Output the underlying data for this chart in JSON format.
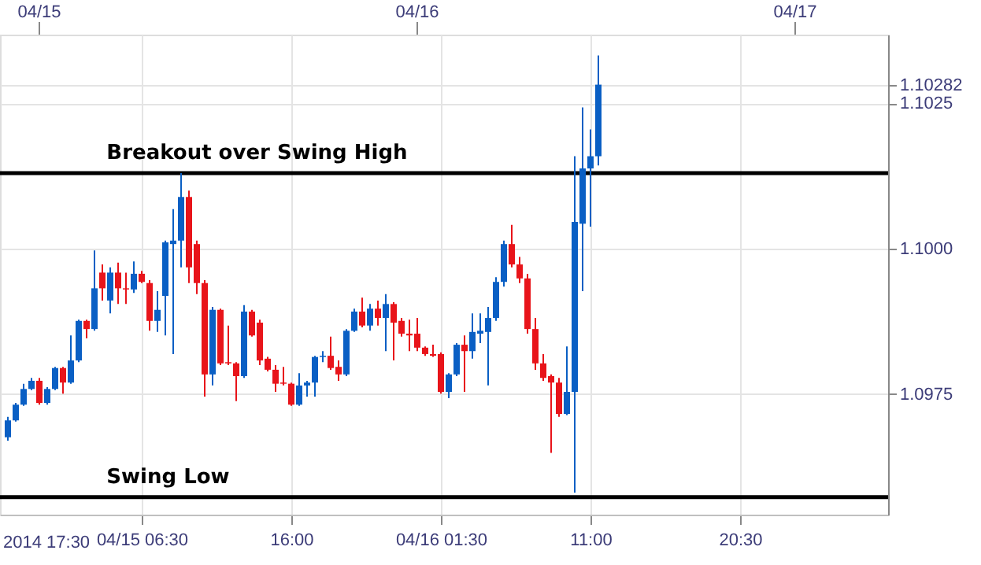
{
  "chart_data": {
    "type": "candlestick",
    "x": [
      "2014-04-14T22:00",
      "2014-04-14T22:30",
      "2014-04-14T23:00",
      "2014-04-14T23:30",
      "2014-04-15T00:00",
      "2014-04-15T00:30",
      "2014-04-15T01:00",
      "2014-04-15T01:30",
      "2014-04-15T02:00",
      "2014-04-15T02:30",
      "2014-04-15T03:00",
      "2014-04-15T03:30",
      "2014-04-15T04:00",
      "2014-04-15T04:30",
      "2014-04-15T05:00",
      "2014-04-15T05:30",
      "2014-04-15T06:00",
      "2014-04-15T06:30",
      "2014-04-15T07:00",
      "2014-04-15T07:30",
      "2014-04-15T08:00",
      "2014-04-15T08:30",
      "2014-04-15T09:00",
      "2014-04-15T09:30",
      "2014-04-15T10:00",
      "2014-04-15T10:30",
      "2014-04-15T11:00",
      "2014-04-15T11:30",
      "2014-04-15T12:00",
      "2014-04-15T12:30",
      "2014-04-15T13:00",
      "2014-04-15T13:30",
      "2014-04-15T14:00",
      "2014-04-15T14:30",
      "2014-04-15T15:00",
      "2014-04-15T15:30",
      "2014-04-15T16:00",
      "2014-04-15T16:30",
      "2014-04-15T17:00",
      "2014-04-15T17:30",
      "2014-04-15T18:00",
      "2014-04-15T18:30",
      "2014-04-15T19:00",
      "2014-04-15T19:30",
      "2014-04-15T20:00",
      "2014-04-15T20:30",
      "2014-04-15T21:00",
      "2014-04-15T21:30",
      "2014-04-15T22:00",
      "2014-04-15T22:30",
      "2014-04-15T23:00",
      "2014-04-15T23:30",
      "2014-04-16T00:00",
      "2014-04-16T00:30",
      "2014-04-16T01:00",
      "2014-04-16T01:30",
      "2014-04-16T02:00",
      "2014-04-16T02:30",
      "2014-04-16T03:00",
      "2014-04-16T03:30",
      "2014-04-16T04:00",
      "2014-04-16T04:30",
      "2014-04-16T05:00",
      "2014-04-16T05:30",
      "2014-04-16T06:00",
      "2014-04-16T06:30",
      "2014-04-16T07:00",
      "2014-04-16T07:30",
      "2014-04-16T08:00",
      "2014-04-16T08:30",
      "2014-04-16T09:00",
      "2014-04-16T09:30",
      "2014-04-16T10:00",
      "2014-04-16T10:30",
      "2014-04-16T11:00",
      "2014-04-16T11:30"
    ],
    "ohlc": [
      [
        1.09676,
        1.09711,
        1.0967,
        1.09705
      ],
      [
        1.09705,
        1.09735,
        1.09703,
        1.09732
      ],
      [
        1.09732,
        1.09768,
        1.0973,
        1.09759
      ],
      [
        1.09759,
        1.09778,
        1.09757,
        1.09773
      ],
      [
        1.09773,
        1.09778,
        1.09732,
        1.09735
      ],
      [
        1.09735,
        1.09762,
        1.09732,
        1.09759
      ],
      [
        1.09759,
        1.09797,
        1.09757,
        1.09795
      ],
      [
        1.09795,
        1.09797,
        1.09751,
        1.0977
      ],
      [
        1.0977,
        1.09851,
        1.09768,
        1.09808
      ],
      [
        1.09808,
        1.09878,
        1.09805,
        1.09876
      ],
      [
        1.09876,
        1.09878,
        1.09846,
        1.09862
      ],
      [
        1.09862,
        1.09997,
        1.09859,
        1.09932
      ],
      [
        1.09959,
        1.09973,
        1.09911,
        1.09932
      ],
      [
        1.09911,
        1.09968,
        1.09889,
        1.09959
      ],
      [
        1.09959,
        1.09976,
        1.09905,
        1.09932
      ],
      [
        1.09932,
        1.09959,
        1.09905,
        1.0993
      ],
      [
        1.0993,
        1.09978,
        1.09924,
        1.09957
      ],
      [
        1.09957,
        1.09962,
        1.09941,
        1.09943
      ],
      [
        1.09941,
        1.09946,
        1.09859,
        1.09876
      ],
      [
        1.09876,
        1.09927,
        1.09857,
        1.09895
      ],
      [
        1.09919,
        1.10014,
        1.09851,
        1.10011
      ],
      [
        1.10008,
        1.10068,
        1.09819,
        1.10014
      ],
      [
        1.10014,
        1.1013,
        1.09968,
        1.10089
      ],
      [
        1.10089,
        1.101,
        1.09941,
        1.09968
      ],
      [
        1.10008,
        1.10014,
        1.09922,
        1.09941
      ],
      [
        1.09941,
        1.09946,
        1.09746,
        1.09784
      ],
      [
        1.09784,
        1.099,
        1.09765,
        1.09895
      ],
      [
        1.09895,
        1.09897,
        1.098,
        1.09803
      ],
      [
        1.09805,
        1.09868,
        1.098,
        1.09803
      ],
      [
        1.09803,
        1.09805,
        1.09738,
        1.09781
      ],
      [
        1.09781,
        1.09903,
        1.09778,
        1.09892
      ],
      [
        1.09892,
        1.09895,
        1.09849,
        1.09851
      ],
      [
        1.09873,
        1.09878,
        1.098,
        1.09808
      ],
      [
        1.09811,
        1.09814,
        1.09789,
        1.09792
      ],
      [
        1.09792,
        1.098,
        1.09754,
        1.09768
      ],
      [
        1.0977,
        1.09797,
        1.09765,
        1.09768
      ],
      [
        1.09768,
        1.0977,
        1.0973,
        1.09732
      ],
      [
        1.09732,
        1.09786,
        1.0973,
        1.09765
      ],
      [
        1.09765,
        1.09773,
        1.09746,
        1.0977
      ],
      [
        1.0977,
        1.09816,
        1.09746,
        1.09814
      ],
      [
        1.09814,
        1.09824,
        1.09805,
        1.09816
      ],
      [
        1.09816,
        1.09849,
        1.09792,
        1.09795
      ],
      [
        1.09797,
        1.09808,
        1.09773,
        1.09784
      ],
      [
        1.09784,
        1.09862,
        1.09781,
        1.09859
      ],
      [
        1.09859,
        1.09897,
        1.09857,
        1.09892
      ],
      [
        1.09892,
        1.09916,
        1.09865,
        1.09868
      ],
      [
        1.09868,
        1.09905,
        1.09859,
        1.09897
      ],
      [
        1.09897,
        1.09911,
        1.09868,
        1.09881
      ],
      [
        1.09881,
        1.09922,
        1.09824,
        1.09905
      ],
      [
        1.09905,
        1.09908,
        1.09808,
        1.09873
      ],
      [
        1.09876,
        1.09881,
        1.09849,
        1.09854
      ],
      [
        1.09854,
        1.09878,
        1.09824,
        1.09851
      ],
      [
        1.09854,
        1.09881,
        1.09824,
        1.0983
      ],
      [
        1.0983,
        1.09832,
        1.09816,
        1.09819
      ],
      [
        1.09819,
        1.09835,
        1.09814,
        1.09816
      ],
      [
        1.09819,
        1.09822,
        1.09751,
        1.09754
      ],
      [
        1.09754,
        1.09786,
        1.09743,
        1.09784
      ],
      [
        1.09784,
        1.09838,
        1.09781,
        1.09835
      ],
      [
        1.09835,
        1.09851,
        1.09754,
        1.09824
      ],
      [
        1.09824,
        1.09889,
        1.09811,
        1.09857
      ],
      [
        1.09854,
        1.09889,
        1.09838,
        1.09859
      ],
      [
        1.09857,
        1.099,
        1.09765,
        1.09881
      ],
      [
        1.09881,
        1.09951,
        1.09876,
        1.09943
      ],
      [
        1.09943,
        1.10014,
        1.09935,
        1.10008
      ],
      [
        1.10008,
        1.10041,
        1.09968,
        1.09973
      ],
      [
        1.09973,
        1.09986,
        1.09941,
        1.09949
      ],
      [
        1.09949,
        1.09957,
        1.09854,
        1.09862
      ],
      [
        1.09862,
        1.09881,
        1.09792,
        1.09803
      ],
      [
        1.09803,
        1.09819,
        1.09773,
        1.09778
      ],
      [
        1.09781,
        1.09784,
        1.09649,
        1.0977
      ],
      [
        1.0977,
        1.09778,
        1.09711,
        1.09716
      ],
      [
        1.09716,
        1.09832,
        1.09714,
        1.09754
      ],
      [
        1.09754,
        1.10159,
        1.09581,
        1.10046
      ],
      [
        1.10043,
        1.10243,
        1.09927,
        1.10138
      ],
      [
        1.10138,
        1.10205,
        1.10038,
        1.10159
      ],
      [
        1.10159,
        1.10332,
        1.10143,
        1.10282
      ]
    ],
    "colors": [
      "#0a5fc4",
      "#0a5fc4",
      "#0a5fc4",
      "#0a5fc4",
      "#e8141a",
      "#0a5fc4",
      "#0a5fc4",
      "#e8141a",
      "#0a5fc4",
      "#0a5fc4",
      "#e8141a",
      "#0a5fc4",
      "#e8141a",
      "#0a5fc4",
      "#e8141a",
      "#e8141a",
      "#0a5fc4",
      "#e8141a",
      "#e8141a",
      "#0a5fc4",
      "#0a5fc4",
      "#0a5fc4",
      "#0a5fc4",
      "#e8141a",
      "#e8141a",
      "#e8141a",
      "#0a5fc4",
      "#e8141a",
      "#e8141a",
      "#e8141a",
      "#0a5fc4",
      "#e8141a",
      "#e8141a",
      "#e8141a",
      "#e8141a",
      "#e8141a",
      "#e8141a",
      "#0a5fc4",
      "#0a5fc4",
      "#0a5fc4",
      "#0a5fc4",
      "#e8141a",
      "#e8141a",
      "#0a5fc4",
      "#0a5fc4",
      "#e8141a",
      "#0a5fc4",
      "#e8141a",
      "#0a5fc4",
      "#e8141a",
      "#e8141a",
      "#e8141a",
      "#e8141a",
      "#e8141a",
      "#e8141a",
      "#e8141a",
      "#0a5fc4",
      "#0a5fc4",
      "#e8141a",
      "#0a5fc4",
      "#0a5fc4",
      "#0a5fc4",
      "#0a5fc4",
      "#0a5fc4",
      "#e8141a",
      "#e8141a",
      "#e8141a",
      "#e8141a",
      "#e8141a",
      "#e8141a",
      "#e8141a",
      "#0a5fc4",
      "#0a5fc4",
      "#0a5fc4",
      "#0a5fc4",
      "#0a5fc4"
    ],
    "xlim": [
      "2014-04-14T21:30",
      "2014-04-17T05:54"
    ],
    "xticks": [
      {
        "value": "2014-04-15T06:30",
        "label": "04/15 06:30"
      },
      {
        "value": "2014-04-15T16:00",
        "label": "16:00"
      },
      {
        "value": "2014-04-16T01:30",
        "label": "04/16 01:30"
      },
      {
        "value": "2014-04-16T11:00",
        "label": "11:00"
      },
      {
        "value": "2014-04-16T20:30",
        "label": "20:30"
      }
    ],
    "x2lim": [
      "2014-04-14T21:30",
      "2014-04-17T05:54"
    ],
    "x2ticks": [
      {
        "value": "2014-04-15",
        "label": "04/15"
      },
      {
        "value": "2014-04-16",
        "label": "04/16"
      },
      {
        "value": "2014-04-17",
        "label": "04/17"
      }
    ],
    "annotations": [
      "2014 17:30"
    ],
    "ylim": [
      1.09543,
      1.10368
    ],
    "yticks": [
      1.0975,
      {
        "value": 1.1,
        "label": "1.1000"
      },
      1.1025,
      1.10282
    ],
    "ref_lines": [
      {
        "axis": "y",
        "value": 1.1013,
        "label": "Breakout over Swing High",
        "color": "#000000"
      },
      {
        "axis": "y",
        "value": 1.09573,
        "label": "Swing Low",
        "color": "#000000"
      }
    ],
    "grid": true
  }
}
